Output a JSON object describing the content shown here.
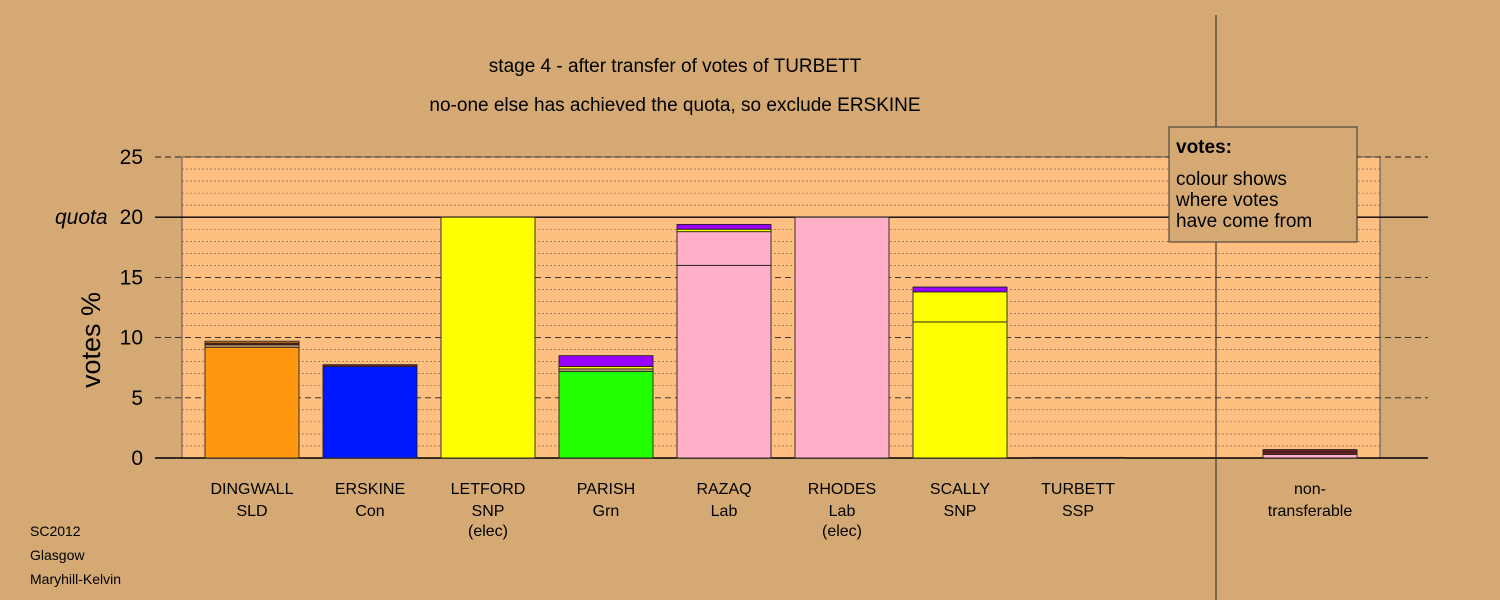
{
  "chart_data": {
    "type": "bar",
    "title": "stage 4 - after transfer of votes of TURBETT",
    "subtitle": "no-one else has achieved the quota, so exclude ERSKINE",
    "ylabel": "votes %",
    "ylim": [
      0,
      25
    ],
    "yticks": [
      "0",
      "5",
      "10",
      "15",
      "20",
      "25"
    ],
    "quota_label": "quota",
    "quota_value": 20,
    "grid": true,
    "legend": {
      "heading": "votes:",
      "lines": [
        "colour shows",
        "where votes",
        "have come from"
      ],
      "position": "top-right"
    },
    "candidates": [
      {
        "name": "DINGWALL",
        "party": "SLD",
        "note": "",
        "segments": [
          {
            "value": 9.2,
            "color": "#ff9810"
          },
          {
            "value": 0.2,
            "color": "#d4a974"
          },
          {
            "value": 0.15,
            "color": "#7a1f1f"
          },
          {
            "value": 0.15,
            "color": "#ff9810"
          }
        ]
      },
      {
        "name": "ERSKINE",
        "party": "Con",
        "note": "",
        "segments": [
          {
            "value": 7.6,
            "color": "#0019ff"
          },
          {
            "value": 0.15,
            "color": "#7a1f1f"
          }
        ]
      },
      {
        "name": "LETFORD",
        "party": "SNP",
        "note": "(elec)",
        "segments": [
          {
            "value": 20.0,
            "color": "#ffff00"
          }
        ]
      },
      {
        "name": "PARISH",
        "party": "Grn",
        "note": "",
        "segments": [
          {
            "value": 7.2,
            "color": "#22ff00"
          },
          {
            "value": 0.2,
            "color": "#d4a974"
          },
          {
            "value": 0.2,
            "color": "#ffff00"
          },
          {
            "value": 0.9,
            "color": "#9900ff"
          }
        ]
      },
      {
        "name": "RAZAQ",
        "party": "Lab",
        "note": "",
        "segments": [
          {
            "value": 16.0,
            "color": "#ffb0c8"
          },
          {
            "value": 2.8,
            "color": "#ffb0c8"
          },
          {
            "value": 0.2,
            "color": "#ffff00"
          },
          {
            "value": 0.4,
            "color": "#9900ff"
          }
        ]
      },
      {
        "name": "RHODES",
        "party": "Lab",
        "note": "(elec)",
        "segments": [
          {
            "value": 20.0,
            "color": "#ffb0c8"
          }
        ]
      },
      {
        "name": "SCALLY",
        "party": "SNP",
        "note": "",
        "segments": [
          {
            "value": 11.3,
            "color": "#ffff00"
          },
          {
            "value": 2.5,
            "color": "#ffff00"
          },
          {
            "value": 0.4,
            "color": "#9900ff"
          }
        ]
      },
      {
        "name": "TURBETT",
        "party": "SSP",
        "note": "",
        "segments": [
          {
            "value": 0.05,
            "color": "#7a1f1f"
          }
        ]
      }
    ],
    "nontransferable": {
      "label_line1": "non-",
      "label_line2": "transferable",
      "segments": [
        {
          "value": 0.3,
          "color": "#ffb0c8"
        },
        {
          "value": 0.2,
          "color": "#7a1f1f"
        },
        {
          "value": 0.2,
          "color": "#7a1f1f"
        }
      ]
    }
  },
  "footer": {
    "line1": "SC2012",
    "line2": "Glasgow",
    "line3": "Maryhill-Kelvin"
  }
}
